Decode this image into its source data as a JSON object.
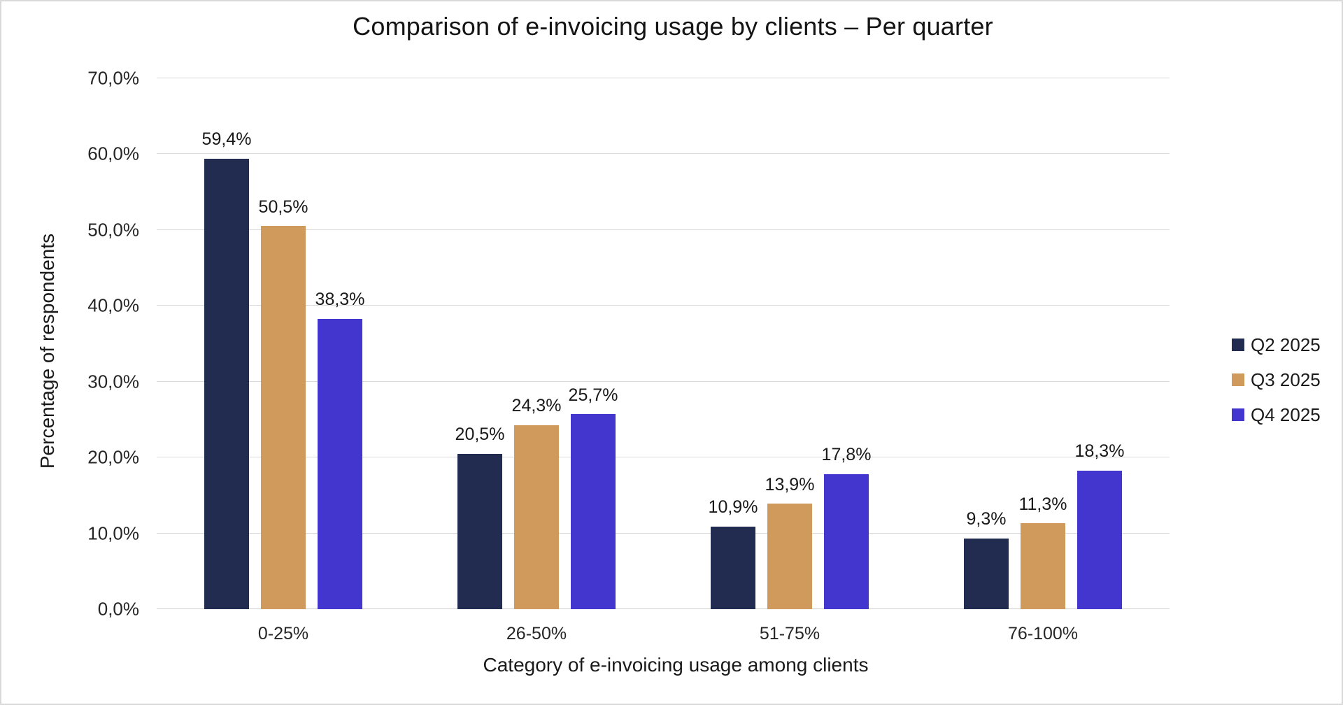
{
  "page": {
    "background_color": "#ffffff",
    "frame_border_color": "#d9d9d9",
    "gridline_color": "#d9d9d9"
  },
  "chart_data": {
    "type": "bar",
    "title": "Comparison of e-invoicing usage by clients – Per quarter",
    "xlabel": "Category of e-invoicing usage among clients",
    "ylabel": "Percentage of respondents",
    "ylim": [
      0,
      70
    ],
    "y_tick_step": 10,
    "y_ticks": [
      {
        "value": 0,
        "label": "0,0%"
      },
      {
        "value": 10,
        "label": "10,0%"
      },
      {
        "value": 20,
        "label": "20,0%"
      },
      {
        "value": 30,
        "label": "30,0%"
      },
      {
        "value": 40,
        "label": "40,0%"
      },
      {
        "value": 50,
        "label": "50,0%"
      },
      {
        "value": 60,
        "label": "60,0%"
      },
      {
        "value": 70,
        "label": "70,0%"
      }
    ],
    "grid": true,
    "legend_position": "right",
    "categories": [
      "0-25%",
      "26-50%",
      "51-75%",
      "76-100%"
    ],
    "series": [
      {
        "name": "Q2 2025",
        "color": "#222c50",
        "values": [
          59.4,
          20.5,
          10.9,
          9.3
        ],
        "labels": [
          "59,4%",
          "20,5%",
          "10,9%",
          "9,3%"
        ]
      },
      {
        "name": "Q3 2025",
        "color": "#d09a5c",
        "values": [
          50.5,
          24.3,
          13.9,
          11.3
        ],
        "labels": [
          "50,5%",
          "24,3%",
          "13,9%",
          "11,3%"
        ]
      },
      {
        "name": "Q4 2025",
        "color": "#4336ce",
        "values": [
          38.3,
          25.7,
          17.8,
          18.3
        ],
        "labels": [
          "38,3%",
          "25,7%",
          "17,8%",
          "18,3%"
        ]
      }
    ]
  }
}
